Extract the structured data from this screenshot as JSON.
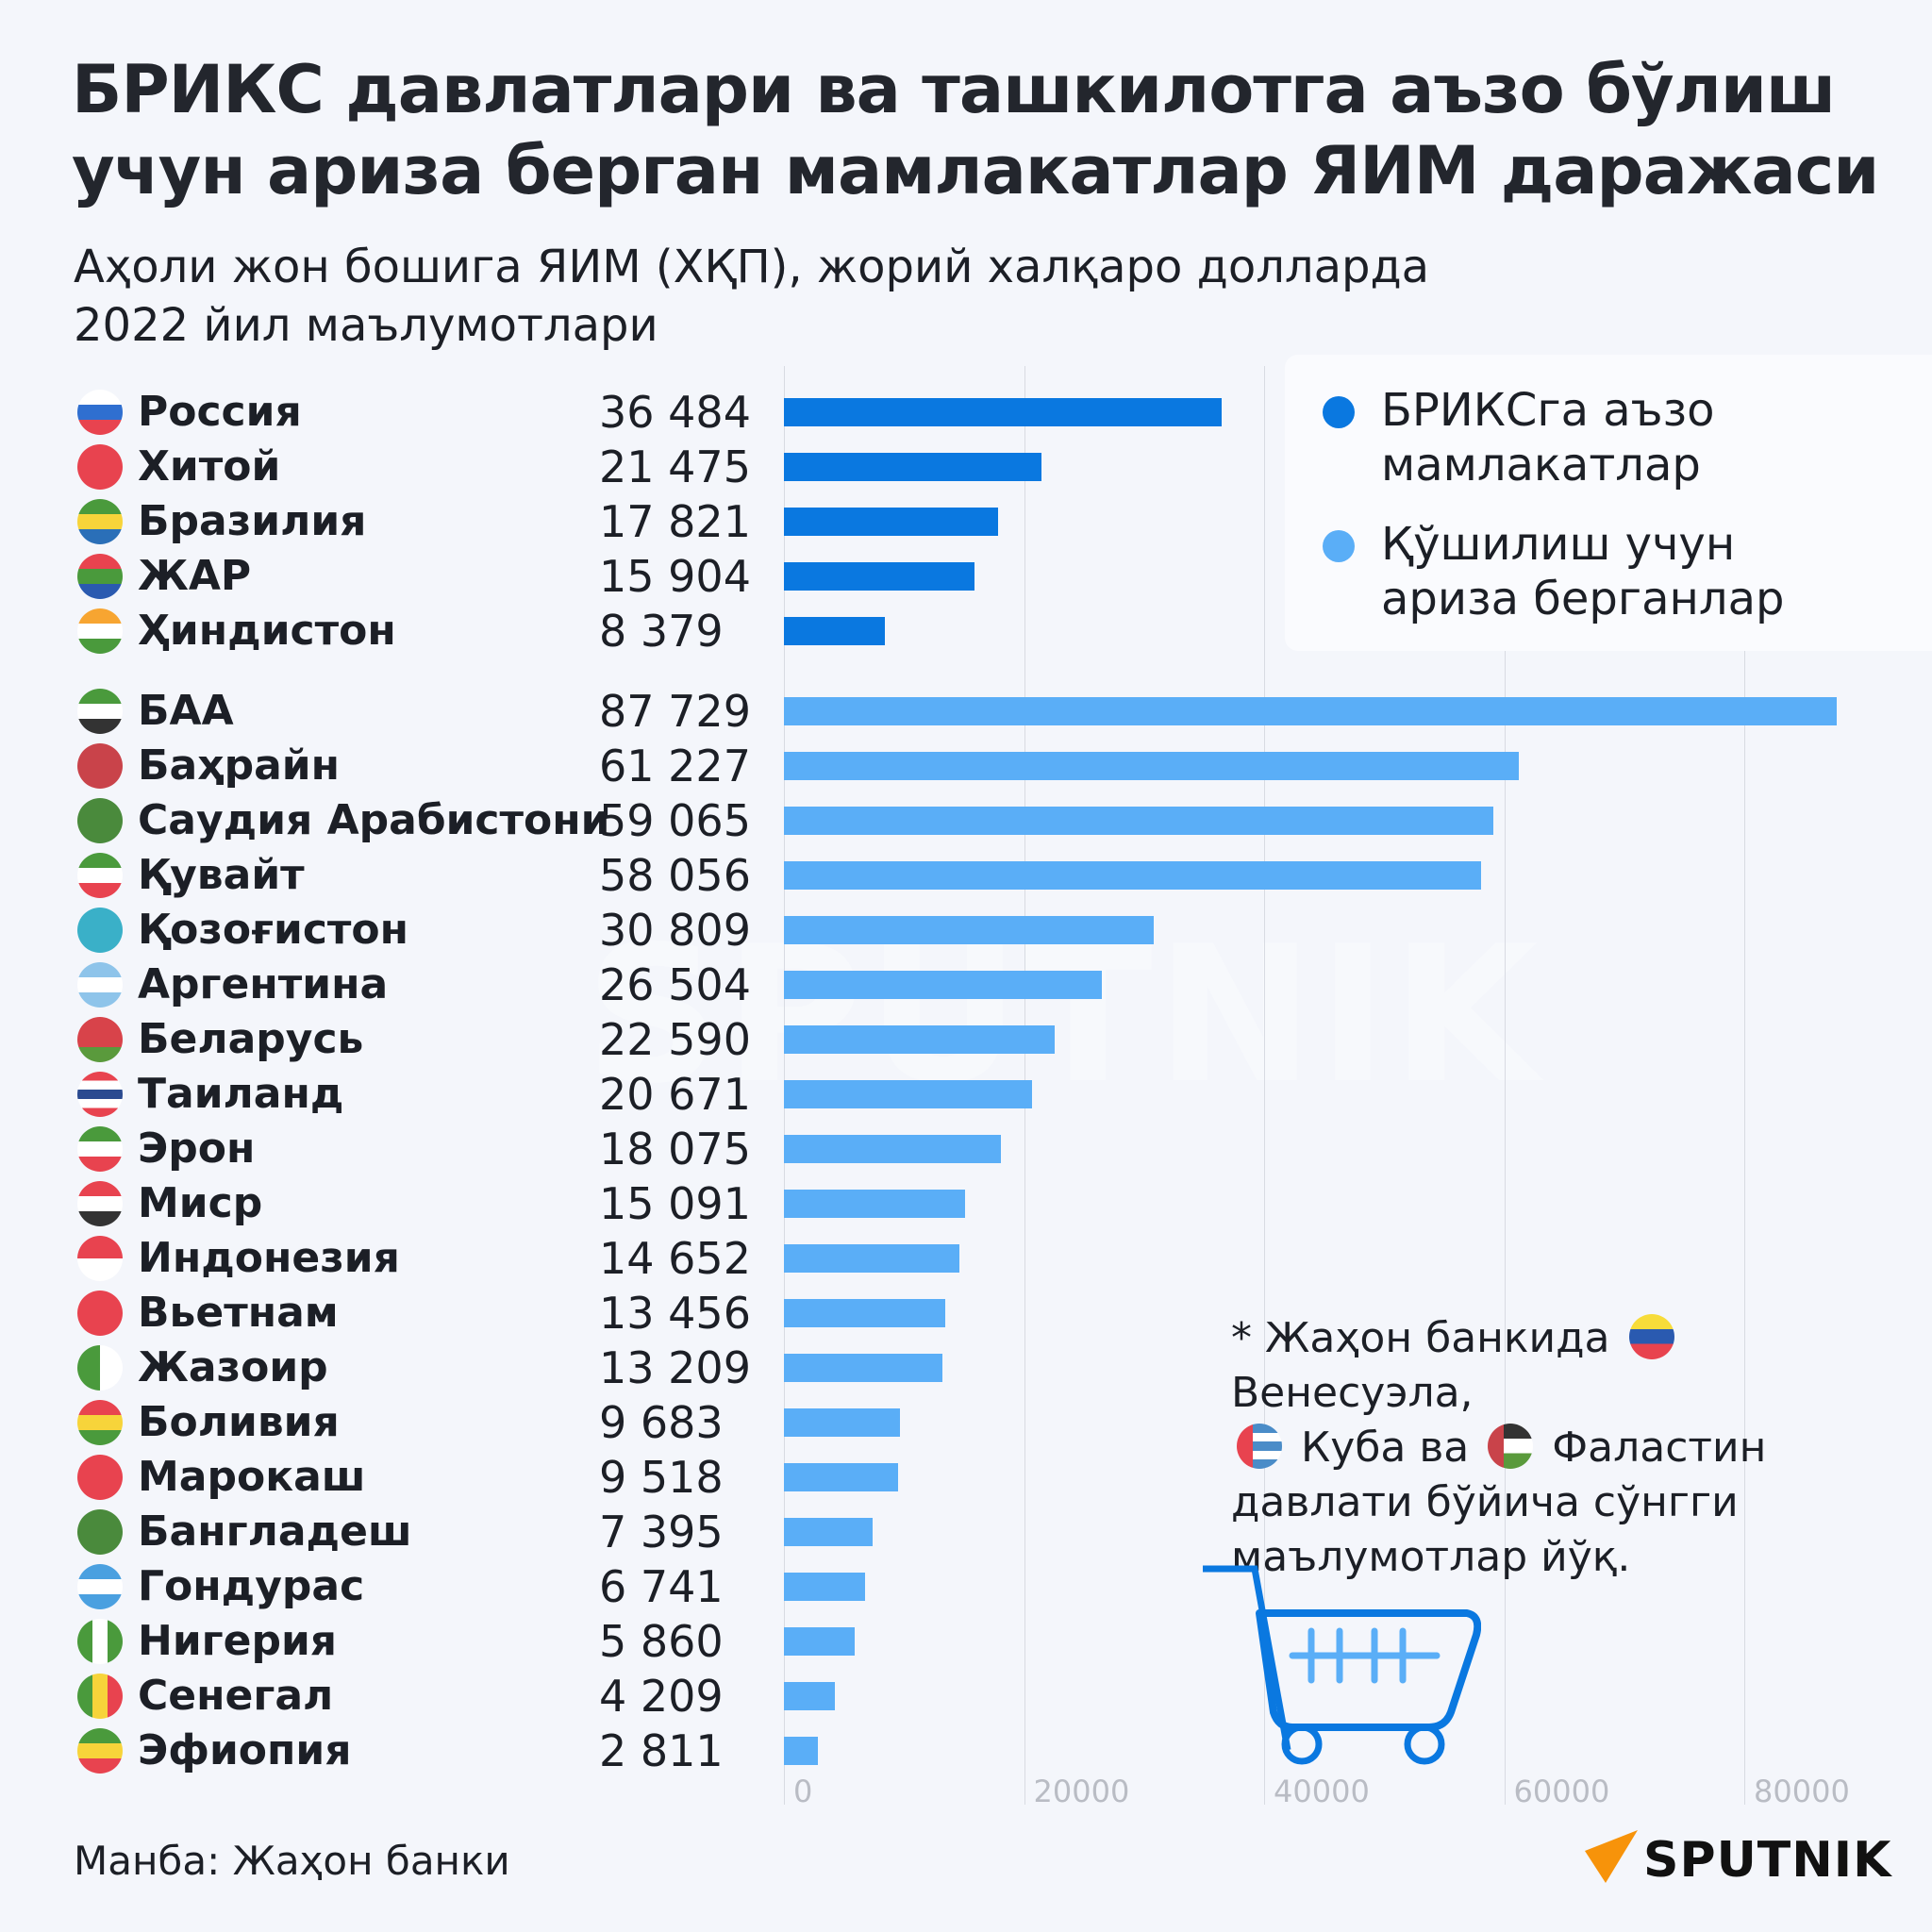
{
  "title": "БРИКС давлатлари ва ташкилотга аъзо бўлиш учун ариза берган мамлакатлар ЯИМ даражаси",
  "subtitle_line1": "Аҳоли жон бошига ЯИМ (ХҚП), жорий халқаро долларда",
  "subtitle_line2": "2022 йил маълумотлари",
  "legend": {
    "members": "БРИКСга аъзо мамлакатлар",
    "applicants": "Қўшилиш учун ариза берганлар"
  },
  "colors": {
    "members": "#0a78e0",
    "applicants": "#5aaef7"
  },
  "footnote": {
    "star": "*",
    "part1": "Жаҳон банкида",
    "venezuela": "Венесуэла,",
    "cuba": "Куба ва",
    "palestine": "Фаластин",
    "part2": "давлати бўйича сўнгги маълумотлар йўқ."
  },
  "source": "Манба: Жаҳон банки",
  "logo": "SPUTNIK",
  "watermark": "SPUTNIK",
  "chart_data": {
    "type": "bar",
    "orientation": "horizontal",
    "title": "БРИКС давлатлари ва ташкилотга аъзо бўлиш учун ариза берган мамлакатлар ЯИМ даражаси",
    "xlabel": "",
    "ylabel": "",
    "xlim": [
      0,
      87729
    ],
    "ticks": [
      "0",
      "20000",
      "40000",
      "60000",
      "80000"
    ],
    "tick_values": [
      0,
      20000,
      40000,
      60000,
      80000
    ],
    "grid": true,
    "legend_position": "top-right",
    "series": [
      {
        "name": "БРИКСга аъзо мамлакатлар",
        "color": "#0a78e0",
        "items": [
          {
            "label": "Россия",
            "value": 36484,
            "display": "36 484",
            "flag": [
              "#ffffff",
              "#2f6fd0",
              "#e8434f"
            ]
          },
          {
            "label": "Хитой",
            "value": 21475,
            "display": "21 475",
            "flag": [
              "#e8434f"
            ]
          },
          {
            "label": "Бразилия",
            "value": 17821,
            "display": "17 821",
            "flag": [
              "#4a9a3c",
              "#f7d43a",
              "#2a6fb8"
            ]
          },
          {
            "label": "ЖАР",
            "value": 15904,
            "display": "15 904",
            "flag": [
              "#e8434f",
              "#4a9a3c",
              "#2a5ab0"
            ]
          },
          {
            "label": "Ҳиндистон",
            "value": 8379,
            "display": "8 379",
            "flag": [
              "#f7a531",
              "#ffffff",
              "#4a9a3c"
            ]
          }
        ]
      },
      {
        "name": "Қўшилиш учун ариза берганлар",
        "color": "#5aaef7",
        "items": [
          {
            "label": "БАА",
            "value": 87729,
            "display": "87 729",
            "flag": [
              "#4a9a3c",
              "#ffffff",
              "#333333"
            ]
          },
          {
            "label": "Баҳрайн",
            "value": 61227,
            "display": "61 227",
            "flag": [
              "#c9434a"
            ]
          },
          {
            "label": "Саудия Арабистони",
            "value": 59065,
            "display": "59 065",
            "flag": [
              "#4a8a3c"
            ]
          },
          {
            "label": "Қувайт",
            "value": 58056,
            "display": "58 056",
            "flag": [
              "#4a9a3c",
              "#ffffff",
              "#e8434f"
            ]
          },
          {
            "label": "Қозоғистон",
            "value": 30809,
            "display": "30 809",
            "flag": [
              "#3ab0c8"
            ]
          },
          {
            "label": "Аргентина",
            "value": 26504,
            "display": "26 504",
            "flag": [
              "#8ec4ea",
              "#ffffff",
              "#8ec4ea"
            ]
          },
          {
            "label": "Беларусь",
            "value": 22590,
            "display": "22 590",
            "flag": [
              "#d8434a",
              "#d8434a",
              "#5a9a3c"
            ]
          },
          {
            "label": "Таиланд",
            "value": 20671,
            "display": "20 671",
            "flag": [
              "#e8434f",
              "#ffffff",
              "#2a4a90",
              "#ffffff",
              "#e8434f"
            ]
          },
          {
            "label": "Эрон",
            "value": 18075,
            "display": "18 075",
            "flag": [
              "#4a9a3c",
              "#ffffff",
              "#e8434f"
            ]
          },
          {
            "label": "Миср",
            "value": 15091,
            "display": "15 091",
            "flag": [
              "#e8434f",
              "#ffffff",
              "#333333"
            ]
          },
          {
            "label": "Индонезия",
            "value": 14652,
            "display": "14 652",
            "flag": [
              "#e8434f",
              "#ffffff"
            ]
          },
          {
            "label": "Вьетнам",
            "value": 13456,
            "display": "13 456",
            "flag": [
              "#e8434f"
            ]
          },
          {
            "label": "Жазоир",
            "value": 13209,
            "display": "13 209",
            "flag": [
              "#4a9a3c",
              "#ffffff"
            ],
            "dir": "90deg"
          },
          {
            "label": "Боливия",
            "value": 9683,
            "display": "9 683",
            "flag": [
              "#e8434f",
              "#f7d43a",
              "#4a9a3c"
            ]
          },
          {
            "label": "Марокаш",
            "value": 9518,
            "display": "9 518",
            "flag": [
              "#e8434f"
            ]
          },
          {
            "label": "Бангладеш",
            "value": 7395,
            "display": "7 395",
            "flag": [
              "#4a8a3c"
            ]
          },
          {
            "label": "Гондурас",
            "value": 6741,
            "display": "6 741",
            "flag": [
              "#4aa0e0",
              "#ffffff",
              "#4aa0e0"
            ]
          },
          {
            "label": "Нигерия",
            "value": 5860,
            "display": "5 860",
            "flag": [
              "#4a9a3c",
              "#ffffff",
              "#4a9a3c"
            ],
            "dir": "90deg"
          },
          {
            "label": "Сенегал",
            "value": 4209,
            "display": "4 209",
            "flag": [
              "#4a9a3c",
              "#f7d43a",
              "#e8434f"
            ],
            "dir": "90deg"
          },
          {
            "label": "Эфиопия",
            "value": 2811,
            "display": "2 811",
            "flag": [
              "#4a9a3c",
              "#f7d43a",
              "#e8434f"
            ]
          }
        ]
      }
    ]
  }
}
